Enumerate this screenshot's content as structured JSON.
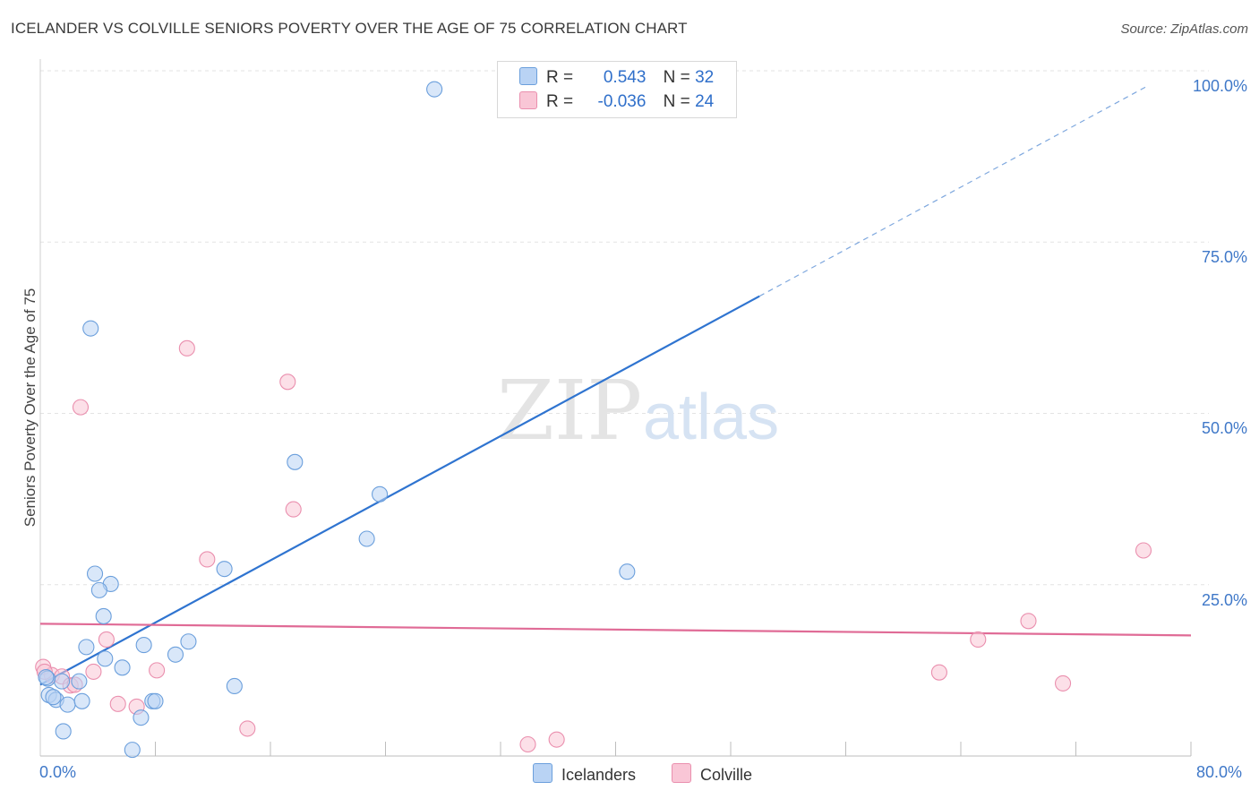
{
  "title": "ICELANDER VS COLVILLE SENIORS POVERTY OVER THE AGE OF 75 CORRELATION CHART",
  "source": "Source: ZipAtlas.com",
  "watermark": {
    "part1": "ZIP",
    "part2": "atlas"
  },
  "legend_top": {
    "r_label": "R =",
    "n_label": "N =",
    "rows": [
      {
        "series": "Icelanders",
        "r": "0.543",
        "n": "32"
      },
      {
        "series": "Colville",
        "r": "-0.036",
        "n": "24"
      }
    ]
  },
  "legend_bottom": [
    "Icelanders",
    "Colville"
  ],
  "colors": {
    "blue_fill": "#b9d3f4",
    "blue_stroke": "#6b9fdc",
    "blue_line": "#2f74d0",
    "pink_fill": "#f9c6d6",
    "pink_stroke": "#ea8fae",
    "pink_line": "#e06b96",
    "axis_text": "#3f78c8",
    "grid": "#e3e3e3"
  },
  "chart_data": {
    "type": "scatter",
    "title": "ICELANDER VS COLVILLE SENIORS POVERTY OVER THE AGE OF 75 CORRELATION CHART",
    "xlabel": "",
    "ylabel": "Seniors Poverty Over the Age of 75",
    "xlim": [
      0,
      80
    ],
    "ylim": [
      0,
      100
    ],
    "x_tick_labels": [
      "0.0%",
      "80.0%"
    ],
    "y_tick_labels": [
      {
        "value": 25,
        "label": "25.0%"
      },
      {
        "value": 50,
        "label": "50.0%"
      },
      {
        "value": 75,
        "label": "75.0%"
      },
      {
        "value": 100,
        "label": "100.0%"
      }
    ],
    "series": [
      {
        "name": "Icelanders",
        "r": 0.543,
        "n": 32,
        "points": [
          [
            27.4,
            97.3
          ],
          [
            3.5,
            62.4
          ],
          [
            17.7,
            42.9
          ],
          [
            23.6,
            38.2
          ],
          [
            22.7,
            31.7
          ],
          [
            12.8,
            27.3
          ],
          [
            40.8,
            26.9
          ],
          [
            3.8,
            26.6
          ],
          [
            4.9,
            25.1
          ],
          [
            4.1,
            24.2
          ],
          [
            4.4,
            20.4
          ],
          [
            10.3,
            16.7
          ],
          [
            7.2,
            16.2
          ],
          [
            3.2,
            15.9
          ],
          [
            9.4,
            14.8
          ],
          [
            4.5,
            14.2
          ],
          [
            5.7,
            12.9
          ],
          [
            1.5,
            10.9
          ],
          [
            2.7,
            10.9
          ],
          [
            13.5,
            10.2
          ],
          [
            0.5,
            11.3
          ],
          [
            0.6,
            8.9
          ],
          [
            1.1,
            8.2
          ],
          [
            0.9,
            8.6
          ],
          [
            1.9,
            7.5
          ],
          [
            2.9,
            8.0
          ],
          [
            7.8,
            8.0
          ],
          [
            8.0,
            8.0
          ],
          [
            7.0,
            5.6
          ],
          [
            1.6,
            3.6
          ],
          [
            6.4,
            0.9
          ],
          [
            0.4,
            11.5
          ]
        ],
        "trend": {
          "x0": 0,
          "y0": 10.4,
          "x1": 50,
          "y1": 67.1,
          "dashed_to_x": 77,
          "dashed_to_y": 97.8
        }
      },
      {
        "name": "Colville",
        "r": -0.036,
        "n": 24,
        "points": [
          [
            10.2,
            59.5
          ],
          [
            17.2,
            54.6
          ],
          [
            2.8,
            50.9
          ],
          [
            17.6,
            36.0
          ],
          [
            11.6,
            28.7
          ],
          [
            76.7,
            30.0
          ],
          [
            68.7,
            19.7
          ],
          [
            65.2,
            17.0
          ],
          [
            4.6,
            17.0
          ],
          [
            8.1,
            12.5
          ],
          [
            62.5,
            12.2
          ],
          [
            71.1,
            10.6
          ],
          [
            3.7,
            12.3
          ],
          [
            0.2,
            13.0
          ],
          [
            0.8,
            11.8
          ],
          [
            1.5,
            11.6
          ],
          [
            2.1,
            10.3
          ],
          [
            2.4,
            10.4
          ],
          [
            5.4,
            7.6
          ],
          [
            6.7,
            7.2
          ],
          [
            14.4,
            4.0
          ],
          [
            35.9,
            2.4
          ],
          [
            33.9,
            1.7
          ],
          [
            0.3,
            12.3
          ]
        ],
        "trend": {
          "x0": 0,
          "y0": 19.3,
          "x1": 80,
          "y1": 17.6
        }
      }
    ]
  }
}
